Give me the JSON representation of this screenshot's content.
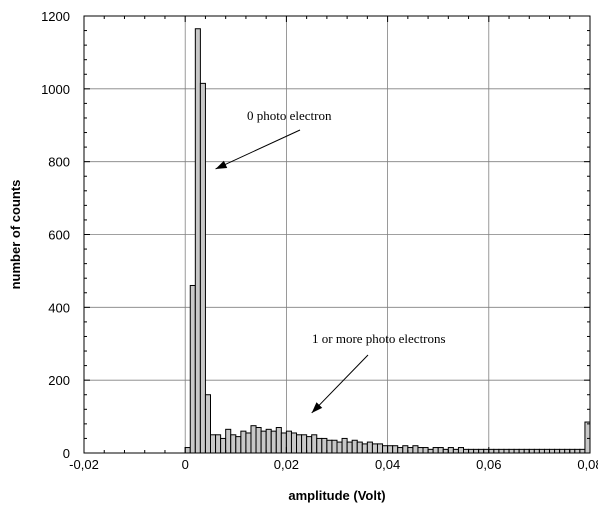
{
  "chart_data": {
    "type": "bar",
    "title": "",
    "xlabel": "amplitude (Volt)",
    "ylabel": "number of counts",
    "xlim": [
      -0.02,
      0.08
    ],
    "ylim": [
      0,
      1200
    ],
    "grid": true,
    "x_ticks": [
      "-0,02",
      "0",
      "0,02",
      "0,04",
      "0,06",
      "0,08"
    ],
    "y_ticks": [
      "0",
      "200",
      "400",
      "600",
      "800",
      "1000",
      "1200"
    ],
    "bar_color": "#c8c8c8",
    "bin_start": 0.0,
    "bin_width": 0.001,
    "values": [
      15,
      460,
      1165,
      1015,
      160,
      50,
      50,
      40,
      65,
      50,
      45,
      60,
      55,
      75,
      70,
      60,
      65,
      60,
      70,
      55,
      60,
      55,
      50,
      50,
      45,
      50,
      40,
      40,
      35,
      35,
      30,
      40,
      30,
      35,
      30,
      25,
      30,
      25,
      25,
      20,
      20,
      20,
      15,
      20,
      15,
      20,
      15,
      15,
      10,
      15,
      15,
      10,
      15,
      10,
      15,
      10,
      10,
      10,
      10,
      10,
      10,
      10,
      10,
      10,
      10,
      10,
      10,
      10,
      10,
      10,
      10,
      10,
      10,
      10,
      10,
      10,
      10,
      10,
      10,
      85
    ],
    "annotations": [
      {
        "text": "0 photo electron",
        "target": [
          0.006,
          780
        ]
      },
      {
        "text": "1 or more photo electrons",
        "target": [
          0.025,
          110
        ]
      }
    ]
  }
}
